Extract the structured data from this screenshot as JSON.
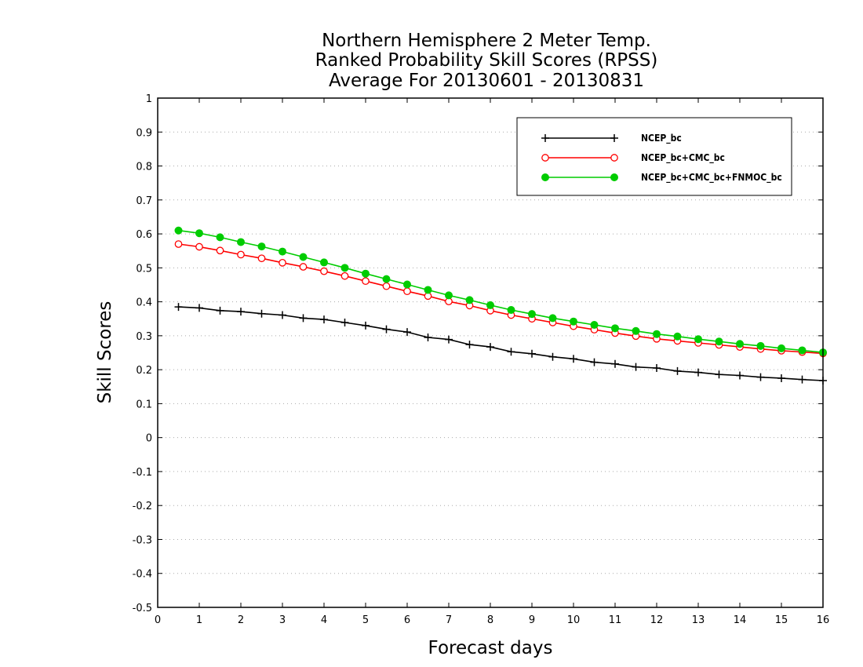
{
  "chart_data": {
    "type": "line",
    "title": [
      "Northern Hemisphere 2 Meter Temp.",
      "Ranked Probability Skill Scores (RPSS)",
      "Average For 20130601 - 20130831"
    ],
    "xlabel": "Forecast days",
    "ylabel": "Skill Scores",
    "xlim": [
      0,
      16
    ],
    "ylim": [
      -0.5,
      1
    ],
    "x_ticks": [
      0,
      1,
      2,
      3,
      4,
      5,
      6,
      7,
      8,
      9,
      10,
      11,
      12,
      13,
      14,
      15,
      16
    ],
    "y_ticks": [
      -0.5,
      -0.4,
      -0.3,
      -0.2,
      -0.1,
      0,
      0.1,
      0.2,
      0.3,
      0.4,
      0.5,
      0.6,
      0.7,
      0.8,
      0.9,
      1
    ],
    "y_tick_labels": [
      "-0.5",
      "-0.4",
      "-0.3",
      "-0.2",
      "-0.1",
      "0",
      "0.1",
      "0.2",
      "0.3",
      "0.4",
      "0.5",
      "0.6",
      "0.7",
      "0.8",
      "0.9",
      "1"
    ],
    "grid": "horizontal-dotted",
    "legend_position": "top-right",
    "x": [
      0.5,
      1,
      1.5,
      2,
      2.5,
      3,
      3.5,
      4,
      4.5,
      5,
      5.5,
      6,
      6.5,
      7,
      7.5,
      8,
      8.5,
      9,
      9.5,
      10,
      10.5,
      11,
      11.5,
      12,
      12.5,
      13,
      13.5,
      14,
      14.5,
      15,
      15.5,
      16
    ],
    "series": [
      {
        "name": "NCEP_bc",
        "color": "#000000",
        "marker": "plus",
        "values": [
          0.385,
          0.382,
          0.374,
          0.371,
          0.365,
          0.361,
          0.352,
          0.348,
          0.339,
          0.33,
          0.319,
          0.311,
          0.295,
          0.289,
          0.274,
          0.267,
          0.253,
          0.247,
          0.238,
          0.232,
          0.222,
          0.217,
          0.208,
          0.205,
          0.196,
          0.192,
          0.186,
          0.183,
          0.178,
          0.175,
          0.171,
          0.168
        ]
      },
      {
        "name": "NCEP_bc+CMC_bc",
        "color": "#ff0000",
        "marker": "open-circle",
        "values": [
          0.57,
          0.562,
          0.551,
          0.539,
          0.528,
          0.515,
          0.503,
          0.49,
          0.476,
          0.461,
          0.446,
          0.431,
          0.417,
          0.401,
          0.389,
          0.374,
          0.361,
          0.35,
          0.339,
          0.328,
          0.318,
          0.308,
          0.299,
          0.291,
          0.285,
          0.279,
          0.273,
          0.267,
          0.261,
          0.256,
          0.252,
          0.248
        ]
      },
      {
        "name": "NCEP_bc+CMC_bc+FNMOC_bc",
        "color": "#00cc00",
        "marker": "filled-circle",
        "values": [
          0.61,
          0.602,
          0.59,
          0.576,
          0.563,
          0.548,
          0.532,
          0.516,
          0.5,
          0.483,
          0.467,
          0.451,
          0.435,
          0.419,
          0.405,
          0.39,
          0.376,
          0.364,
          0.352,
          0.342,
          0.332,
          0.322,
          0.314,
          0.305,
          0.298,
          0.29,
          0.283,
          0.276,
          0.27,
          0.263,
          0.257,
          0.251
        ]
      }
    ]
  }
}
